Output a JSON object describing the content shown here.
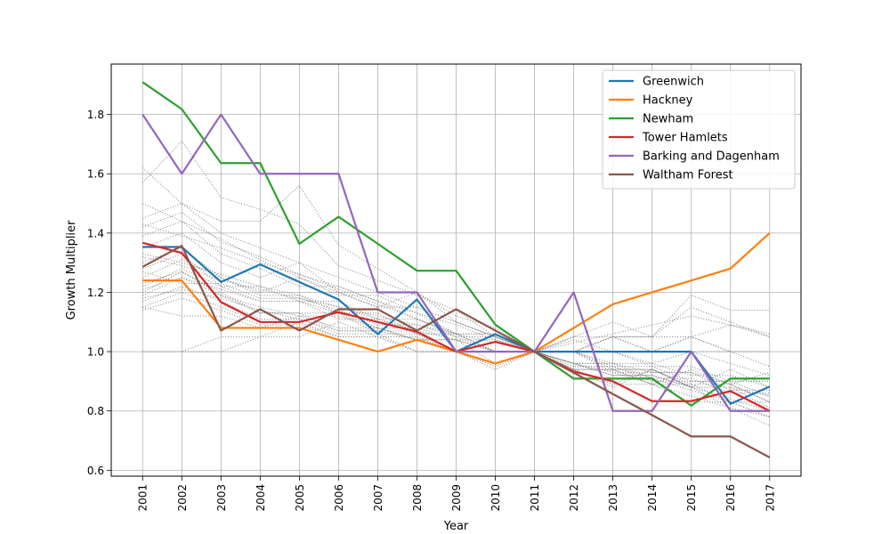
{
  "chart_data": {
    "type": "line",
    "xlabel": "Year",
    "ylabel": "Growth Multiplier",
    "xlim": [
      2000.2,
      2017.8
    ],
    "ylim": [
      0.58,
      1.97
    ],
    "grid": true,
    "legend_placement": "top-right",
    "yticks": [
      0.6,
      0.8,
      1.0,
      1.2,
      1.4,
      1.6,
      1.8
    ],
    "ytick_labels": [
      "0.6",
      "0.8",
      "1.0",
      "1.2",
      "1.4",
      "1.6",
      "1.8"
    ],
    "x": [
      2001,
      2002,
      2003,
      2004,
      2005,
      2006,
      2007,
      2008,
      2009,
      2010,
      2011,
      2012,
      2013,
      2014,
      2015,
      2016,
      2017
    ],
    "xtick_labels": [
      "2001",
      "2002",
      "2003",
      "2004",
      "2005",
      "2006",
      "2007",
      "2008",
      "2009",
      "2010",
      "2011",
      "2012",
      "2013",
      "2014",
      "2015",
      "2016",
      "2017"
    ],
    "series": [
      {
        "name": "Greenwich",
        "color": "#1f77b4",
        "values": [
          1.353,
          1.353,
          1.235,
          1.294,
          1.235,
          1.176,
          1.059,
          1.176,
          1.0,
          1.059,
          1.0,
          1.0,
          1.0,
          1.0,
          1.0,
          0.824,
          0.882
        ]
      },
      {
        "name": "Hackney",
        "color": "#ff7f0e",
        "values": [
          1.24,
          1.24,
          1.08,
          1.08,
          1.08,
          1.04,
          1.0,
          1.04,
          1.0,
          0.96,
          1.0,
          1.08,
          1.16,
          1.2,
          1.24,
          1.28,
          1.4
        ]
      },
      {
        "name": "Newham",
        "color": "#2ca02c",
        "values": [
          1.909,
          1.818,
          1.636,
          1.636,
          1.364,
          1.455,
          1.364,
          1.273,
          1.273,
          1.091,
          1.0,
          0.909,
          0.909,
          0.909,
          0.818,
          0.909,
          0.909
        ]
      },
      {
        "name": "Tower Hamlets",
        "color": "#d62728",
        "values": [
          1.367,
          1.333,
          1.167,
          1.1,
          1.1,
          1.133,
          1.1,
          1.067,
          1.0,
          1.033,
          1.0,
          0.933,
          0.9,
          0.833,
          0.833,
          0.867,
          0.8
        ]
      },
      {
        "name": "Barking and Dagenham",
        "color": "#9467bd",
        "values": [
          1.8,
          1.6,
          1.8,
          1.6,
          1.6,
          1.6,
          1.2,
          1.2,
          1.0,
          1.0,
          1.0,
          1.2,
          0.8,
          0.8,
          1.0,
          0.8,
          0.8
        ]
      },
      {
        "name": "Waltham Forest",
        "color": "#8c564b",
        "values": [
          1.286,
          1.357,
          1.071,
          1.143,
          1.071,
          1.143,
          1.143,
          1.071,
          1.143,
          1.071,
          1.0,
          0.929,
          0.857,
          0.786,
          0.714,
          0.714,
          0.643
        ]
      }
    ],
    "background_series": [
      {
        "values": [
          1.62,
          1.5,
          1.44,
          1.44,
          1.56,
          1.36,
          1.28,
          1.2,
          1.12,
          1.08,
          1.0,
          0.96,
          0.92,
          0.92,
          0.88,
          0.84,
          0.8
        ]
      },
      {
        "values": [
          1.57,
          1.71,
          1.52,
          1.48,
          1.43,
          1.29,
          1.24,
          1.19,
          1.14,
          1.05,
          1.0,
          1.05,
          1.05,
          1.05,
          1.19,
          1.14,
          1.14
        ]
      },
      {
        "values": [
          1.45,
          1.5,
          1.4,
          1.35,
          1.3,
          1.25,
          1.2,
          1.15,
          1.1,
          1.05,
          1.0,
          1.05,
          1.1,
          1.05,
          1.15,
          1.1,
          1.05
        ]
      },
      {
        "values": [
          1.43,
          1.39,
          1.35,
          1.3,
          1.26,
          1.22,
          1.17,
          1.13,
          1.09,
          1.04,
          1.0,
          0.96,
          0.96,
          0.91,
          0.87,
          0.83,
          0.78
        ]
      },
      {
        "values": [
          1.39,
          1.44,
          1.33,
          1.28,
          1.22,
          1.22,
          1.17,
          1.11,
          1.06,
          1.0,
          1.0,
          0.94,
          0.89,
          0.89,
          0.83,
          0.83,
          0.78
        ]
      },
      {
        "values": [
          1.35,
          1.4,
          1.3,
          1.25,
          1.3,
          1.2,
          1.15,
          1.2,
          1.1,
          1.05,
          1.0,
          1.0,
          0.95,
          0.95,
          0.9,
          0.9,
          0.85
        ]
      },
      {
        "values": [
          1.3,
          1.35,
          1.25,
          1.2,
          1.25,
          1.2,
          1.15,
          1.15,
          1.1,
          1.05,
          1.0,
          1.0,
          1.05,
          1.0,
          1.05,
          1.0,
          1.0
        ]
      },
      {
        "values": [
          1.28,
          1.33,
          1.22,
          1.22,
          1.17,
          1.17,
          1.11,
          1.11,
          1.06,
          1.06,
          1.0,
          0.94,
          0.94,
          0.89,
          0.94,
          0.89,
          0.83
        ]
      },
      {
        "values": [
          1.25,
          1.31,
          1.25,
          1.19,
          1.19,
          1.13,
          1.13,
          1.06,
          1.06,
          1.0,
          1.0,
          1.0,
          0.94,
          0.94,
          0.88,
          0.94,
          0.88
        ]
      },
      {
        "values": [
          1.22,
          1.28,
          1.22,
          1.17,
          1.17,
          1.11,
          1.11,
          1.06,
          1.0,
          1.0,
          1.0,
          0.94,
          0.94,
          0.89,
          0.89,
          0.83,
          0.83
        ]
      },
      {
        "values": [
          1.2,
          1.27,
          1.2,
          1.13,
          1.13,
          1.07,
          1.07,
          1.07,
          1.0,
          1.0,
          1.0,
          1.0,
          0.93,
          0.93,
          0.93,
          0.87,
          0.87
        ]
      },
      {
        "values": [
          1.19,
          1.25,
          1.19,
          1.13,
          1.13,
          1.13,
          1.06,
          1.06,
          1.0,
          1.0,
          1.0,
          0.94,
          0.94,
          0.94,
          0.88,
          0.88,
          0.81
        ]
      },
      {
        "values": [
          1.17,
          1.22,
          1.17,
          1.11,
          1.11,
          1.06,
          1.06,
          1.0,
          1.0,
          0.94,
          1.0,
          0.94,
          0.89,
          0.94,
          0.89,
          0.89,
          0.83
        ]
      },
      {
        "values": [
          1.15,
          1.2,
          1.15,
          1.1,
          1.1,
          1.05,
          1.05,
          1.05,
          1.0,
          1.0,
          1.0,
          1.0,
          1.0,
          0.95,
          0.95,
          0.9,
          0.9
        ]
      },
      {
        "values": [
          1.14,
          1.18,
          1.14,
          1.09,
          1.09,
          1.05,
          1.05,
          1.0,
          1.0,
          0.95,
          1.0,
          0.95,
          0.95,
          0.91,
          0.91,
          0.86,
          0.86
        ]
      },
      {
        "values": [
          1.0,
          1.0,
          1.0,
          1.05,
          1.1,
          1.05,
          1.05,
          1.0,
          1.0,
          1.0,
          1.0,
          1.0,
          1.0,
          1.0,
          1.0,
          1.0,
          1.0
        ]
      },
      {
        "values": [
          1.0,
          1.0,
          1.05,
          1.05,
          1.05,
          1.1,
          1.05,
          1.05,
          1.0,
          1.0,
          1.0,
          0.95,
          0.95,
          0.9,
          0.9,
          0.9,
          0.9
        ]
      },
      {
        "values": [
          1.15,
          1.12,
          1.12,
          1.08,
          1.12,
          1.08,
          1.08,
          1.04,
          1.04,
          1.0,
          1.0,
          1.0,
          0.96,
          0.96,
          0.92,
          0.92,
          0.88
        ]
      },
      {
        "values": [
          1.33,
          1.3,
          1.26,
          1.22,
          1.19,
          1.15,
          1.11,
          1.07,
          1.04,
          1.0,
          1.0,
          0.96,
          0.93,
          0.89,
          0.85,
          0.81,
          0.78
        ]
      },
      {
        "values": [
          1.27,
          1.23,
          1.23,
          1.18,
          1.18,
          1.14,
          1.09,
          1.09,
          1.05,
          1.0,
          1.0,
          1.0,
          1.05,
          1.0,
          1.05,
          1.09,
          1.05
        ]
      },
      {
        "values": [
          1.23,
          1.27,
          1.19,
          1.15,
          1.12,
          1.12,
          1.08,
          1.04,
          1.04,
          0.96,
          1.0,
          0.96,
          0.92,
          0.92,
          0.88,
          0.88,
          0.85
        ]
      },
      {
        "values": [
          1.18,
          1.21,
          1.18,
          1.14,
          1.11,
          1.07,
          1.07,
          1.04,
          1.0,
          0.96,
          1.0,
          0.96,
          0.96,
          0.93,
          0.93,
          0.89,
          0.93
        ]
      },
      {
        "values": [
          1.5,
          1.44,
          1.38,
          1.31,
          1.25,
          1.19,
          1.19,
          1.13,
          1.06,
          1.06,
          1.0,
          0.94,
          0.88,
          0.94,
          0.88,
          0.81,
          0.75
        ]
      },
      {
        "values": [
          1.42,
          1.47,
          1.37,
          1.32,
          1.26,
          1.21,
          1.16,
          1.11,
          1.05,
          1.05,
          1.0,
          1.0,
          1.05,
          1.05,
          1.05,
          1.0,
          0.95
        ]
      },
      {
        "values": [
          1.32,
          1.29,
          1.24,
          1.21,
          1.18,
          1.15,
          1.12,
          1.09,
          1.06,
          1.03,
          1.0,
          1.03,
          1.06,
          1.09,
          1.12,
          1.09,
          1.06
        ]
      },
      {
        "values": [
          1.21,
          1.25,
          1.21,
          1.17,
          1.17,
          1.13,
          1.08,
          1.08,
          1.04,
          1.04,
          1.0,
          1.04,
          1.0,
          0.96,
          1.0,
          0.96,
          0.92
        ]
      }
    ]
  }
}
